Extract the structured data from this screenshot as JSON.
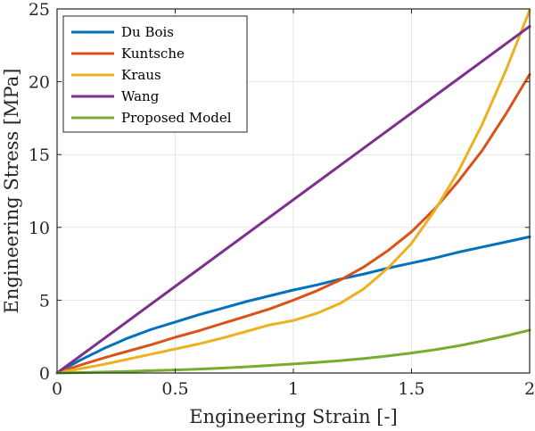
{
  "chart_data": {
    "type": "line",
    "title": "",
    "xlabel": "Engineering Strain [-]",
    "ylabel": "Engineering Stress [MPa]",
    "xlim": [
      0,
      2
    ],
    "ylim": [
      0,
      25
    ],
    "xticks": [
      0,
      0.5,
      1,
      1.5,
      2
    ],
    "yticks": [
      0,
      5,
      10,
      15,
      20,
      25
    ],
    "xtick_labels": [
      "0",
      "0.5",
      "1",
      "1.5",
      "2"
    ],
    "ytick_labels": [
      "0",
      "5",
      "10",
      "15",
      "20",
      "25"
    ],
    "grid": true,
    "legend_position": "top-left",
    "series": [
      {
        "name": "Du Bois",
        "color": "#0072BD",
        "x": [
          0,
          0.1,
          0.2,
          0.3,
          0.4,
          0.5,
          0.6,
          0.7,
          0.8,
          0.9,
          1.0,
          1.1,
          1.2,
          1.3,
          1.4,
          1.5,
          1.6,
          1.7,
          1.8,
          1.9,
          2.0
        ],
        "y": [
          0,
          0.9,
          1.7,
          2.4,
          3.0,
          3.5,
          4.0,
          4.45,
          4.9,
          5.3,
          5.7,
          6.05,
          6.45,
          6.8,
          7.2,
          7.55,
          7.9,
          8.3,
          8.65,
          9.0,
          9.35
        ]
      },
      {
        "name": "Kuntsche",
        "color": "#D95319",
        "x": [
          0,
          0.1,
          0.2,
          0.3,
          0.4,
          0.5,
          0.6,
          0.7,
          0.8,
          0.9,
          1.0,
          1.1,
          1.2,
          1.3,
          1.4,
          1.5,
          1.6,
          1.7,
          1.8,
          1.9,
          2.0
        ],
        "y": [
          0,
          0.55,
          1.05,
          1.5,
          1.95,
          2.45,
          2.9,
          3.4,
          3.9,
          4.4,
          5.0,
          5.65,
          6.4,
          7.3,
          8.4,
          9.7,
          11.3,
          13.2,
          15.3,
          17.8,
          20.5
        ]
      },
      {
        "name": "Kraus",
        "color": "#EDB120",
        "x": [
          0,
          0.1,
          0.2,
          0.3,
          0.4,
          0.5,
          0.6,
          0.7,
          0.8,
          0.9,
          1.0,
          1.1,
          1.2,
          1.3,
          1.4,
          1.5,
          1.6,
          1.7,
          1.8,
          1.9,
          2.0
        ],
        "y": [
          0,
          0.3,
          0.6,
          0.95,
          1.3,
          1.65,
          2.0,
          2.4,
          2.85,
          3.3,
          3.6,
          4.1,
          4.8,
          5.8,
          7.2,
          8.9,
          11.2,
          13.9,
          17.1,
          20.8,
          24.9
        ]
      },
      {
        "name": "Wang",
        "color": "#7E2F8E",
        "x": [
          0,
          2
        ],
        "y": [
          0,
          23.8
        ]
      },
      {
        "name": "Proposed Model",
        "color": "#77AC30",
        "x": [
          0,
          0.1,
          0.2,
          0.3,
          0.4,
          0.5,
          0.6,
          0.7,
          0.8,
          0.9,
          1.0,
          1.1,
          1.2,
          1.3,
          1.4,
          1.5,
          1.6,
          1.7,
          1.8,
          1.9,
          2.0
        ],
        "y": [
          0,
          0.03,
          0.07,
          0.11,
          0.16,
          0.21,
          0.27,
          0.34,
          0.42,
          0.52,
          0.62,
          0.73,
          0.85,
          1.0,
          1.17,
          1.37,
          1.6,
          1.87,
          2.2,
          2.55,
          2.95
        ]
      }
    ]
  }
}
